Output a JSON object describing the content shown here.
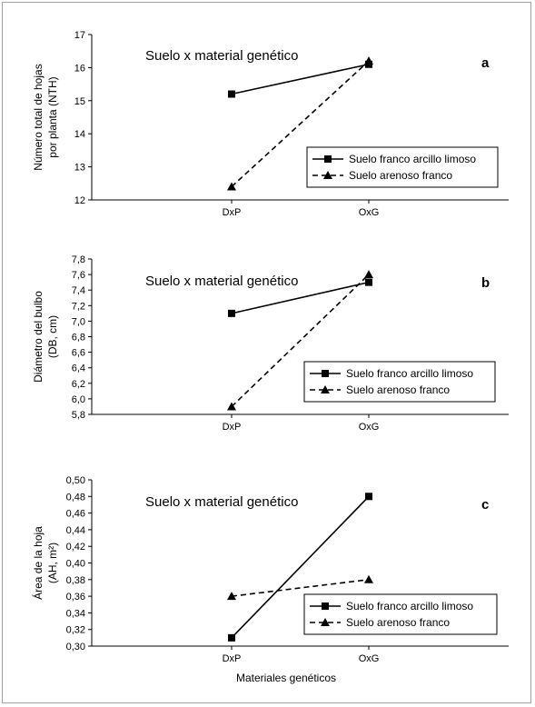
{
  "x_title": "Materiales genéticos",
  "chart_data": [
    {
      "type": "line",
      "panel_letter": "a",
      "title": "Suelo x material genético",
      "ylabel_lines": [
        "Número total de hojas",
        "por planta (NTH)"
      ],
      "categories": [
        "DxP",
        "OxG"
      ],
      "ylim": [
        12,
        17
      ],
      "yticks": [
        "12",
        "13",
        "14",
        "15",
        "16",
        "17"
      ],
      "series": [
        {
          "name": "Suelo franco arcillo limoso",
          "values": [
            15.2,
            16.1
          ],
          "marker": "square",
          "dash": false
        },
        {
          "name": "Suelo arenoso franco",
          "values": [
            12.4,
            16.2
          ],
          "marker": "triangle",
          "dash": true
        }
      ]
    },
    {
      "type": "line",
      "panel_letter": "b",
      "title": "Suelo x material genético",
      "ylabel_lines": [
        "Diámetro del bulbo",
        "(DB, cm)"
      ],
      "categories": [
        "DxP",
        "OxG"
      ],
      "ylim": [
        5.8,
        7.8
      ],
      "yticks": [
        "5,8",
        "6,0",
        "6,2",
        "6,4",
        "6,6",
        "6,8",
        "7,0",
        "7,2",
        "7,4",
        "7,6",
        "7,8"
      ],
      "series": [
        {
          "name": "Suelo franco arcillo limoso",
          "values": [
            7.1,
            7.5
          ],
          "marker": "square",
          "dash": false
        },
        {
          "name": "Suelo arenoso franco",
          "values": [
            5.9,
            7.6
          ],
          "marker": "triangle",
          "dash": true
        }
      ]
    },
    {
      "type": "line",
      "panel_letter": "c",
      "title": "Suelo x material genético",
      "ylabel_lines": [
        "Área de la hoja",
        "(AH, m²)"
      ],
      "categories": [
        "DxP",
        "OxG"
      ],
      "ylim": [
        0.3,
        0.5
      ],
      "yticks": [
        "0,30",
        "0,32",
        "0,34",
        "0,36",
        "0,38",
        "0,40",
        "0,42",
        "0,44",
        "0,46",
        "0,48",
        "0,50"
      ],
      "series": [
        {
          "name": "Suelo franco arcillo limoso",
          "values": [
            0.31,
            0.48
          ],
          "marker": "square",
          "dash": false
        },
        {
          "name": "Suelo arenoso franco",
          "values": [
            0.36,
            0.38
          ],
          "marker": "triangle",
          "dash": true
        }
      ]
    }
  ]
}
